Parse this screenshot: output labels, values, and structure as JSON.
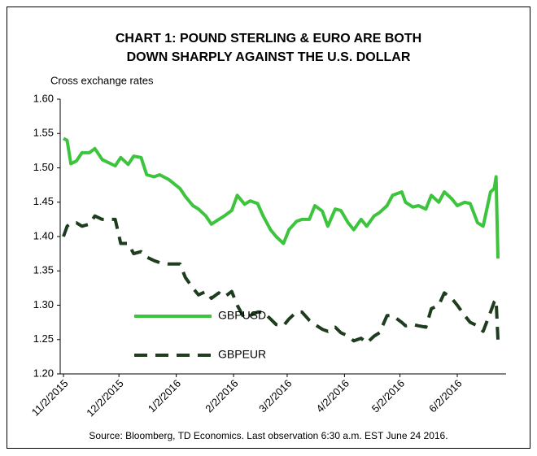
{
  "chart_data": {
    "type": "line",
    "title": [
      "CHART 1: POUND STERLING & EURO ARE BOTH",
      "DOWN SHARPLY AGAINST THE U.S. DOLLAR"
    ],
    "y_label": "Cross exchange rates",
    "source": "Source: Bloomberg, TD Economics. Last observation 6:30 a.m. EST June 24 2016.",
    "x": [
      "11/2/2015",
      "11/4/2015",
      "11/6/2015",
      "11/9/2015",
      "11/12/2015",
      "11/16/2015",
      "11/19/2015",
      "11/23/2015",
      "11/26/2015",
      "11/30/2015",
      "12/3/2015",
      "12/7/2015",
      "12/10/2015",
      "12/14/2015",
      "12/17/2015",
      "12/21/2015",
      "12/24/2015",
      "12/29/2015",
      "1/4/2016",
      "1/7/2016",
      "1/11/2016",
      "1/14/2016",
      "1/18/2016",
      "1/21/2016",
      "1/25/2016",
      "1/28/2016",
      "2/1/2016",
      "2/4/2016",
      "2/8/2016",
      "2/11/2016",
      "2/15/2016",
      "2/18/2016",
      "2/22/2016",
      "2/25/2016",
      "2/29/2016",
      "3/3/2016",
      "3/7/2016",
      "3/10/2016",
      "3/14/2016",
      "3/17/2016",
      "3/21/2016",
      "3/24/2016",
      "3/28/2016",
      "3/31/2016",
      "4/4/2016",
      "4/7/2016",
      "4/11/2016",
      "4/14/2016",
      "4/18/2016",
      "4/21/2016",
      "4/25/2016",
      "4/28/2016",
      "5/3/2016",
      "5/5/2016",
      "5/9/2016",
      "5/12/2016",
      "5/16/2016",
      "5/19/2016",
      "5/23/2016",
      "5/26/2016",
      "5/30/2016",
      "6/2/2016",
      "6/6/2016",
      "6/9/2016",
      "6/13/2016",
      "6/16/2016",
      "6/20/2016",
      "6/22/2016",
      "6/23/2016",
      "6/24/2016"
    ],
    "series": [
      {
        "name": "GBPUSD",
        "color": "#3dc43d",
        "dash": false,
        "values": [
          1.543,
          1.54,
          1.506,
          1.51,
          1.522,
          1.522,
          1.528,
          1.512,
          1.508,
          1.503,
          1.515,
          1.505,
          1.517,
          1.515,
          1.49,
          1.487,
          1.49,
          1.483,
          1.47,
          1.458,
          1.445,
          1.44,
          1.43,
          1.418,
          1.425,
          1.43,
          1.438,
          1.46,
          1.447,
          1.452,
          1.448,
          1.43,
          1.41,
          1.4,
          1.39,
          1.41,
          1.422,
          1.425,
          1.425,
          1.445,
          1.437,
          1.415,
          1.44,
          1.438,
          1.42,
          1.41,
          1.425,
          1.415,
          1.43,
          1.435,
          1.445,
          1.46,
          1.465,
          1.45,
          1.443,
          1.445,
          1.44,
          1.46,
          1.45,
          1.465,
          1.455,
          1.445,
          1.45,
          1.448,
          1.42,
          1.415,
          1.465,
          1.47,
          1.487,
          1.368
        ]
      },
      {
        "name": "GBPEUR",
        "color": "#1e3d1e",
        "dash": true,
        "values": [
          1.4,
          1.415,
          1.42,
          1.42,
          1.415,
          1.418,
          1.43,
          1.425,
          1.425,
          1.425,
          1.39,
          1.39,
          1.375,
          1.378,
          1.37,
          1.365,
          1.362,
          1.36,
          1.36,
          1.34,
          1.325,
          1.315,
          1.32,
          1.31,
          1.318,
          1.312,
          1.32,
          1.3,
          1.28,
          1.285,
          1.29,
          1.29,
          1.28,
          1.272,
          1.27,
          1.28,
          1.29,
          1.29,
          1.278,
          1.272,
          1.265,
          1.262,
          1.268,
          1.26,
          1.255,
          1.248,
          1.252,
          1.245,
          1.255,
          1.26,
          1.285,
          1.285,
          1.275,
          1.27,
          1.272,
          1.27,
          1.268,
          1.295,
          1.3,
          1.318,
          1.31,
          1.3,
          1.285,
          1.275,
          1.27,
          1.262,
          1.29,
          1.305,
          1.308,
          1.25
        ]
      }
    ],
    "xlim": [
      "11/2/2015",
      "6/24/2016"
    ],
    "xticks": [
      "11/2/2015",
      "12/2/2015",
      "1/2/2016",
      "2/2/2016",
      "3/2/2016",
      "4/2/2016",
      "5/2/2016",
      "6/2/2016"
    ],
    "ylim": [
      1.2,
      1.6
    ],
    "yticks": [
      {
        "value": 1.2,
        "label": "1.20"
      },
      {
        "value": 1.25,
        "label": "1.25"
      },
      {
        "value": 1.3,
        "label": "1.30"
      },
      {
        "value": 1.35,
        "label": "1.35"
      },
      {
        "value": 1.4,
        "label": "1.40"
      },
      {
        "value": 1.45,
        "label": "1.45"
      },
      {
        "value": 1.5,
        "label": "1.50"
      },
      {
        "value": 1.55,
        "label": "1.55"
      },
      {
        "value": 1.6,
        "label": "1.60"
      }
    ],
    "grid": false,
    "legend": "lower left"
  }
}
